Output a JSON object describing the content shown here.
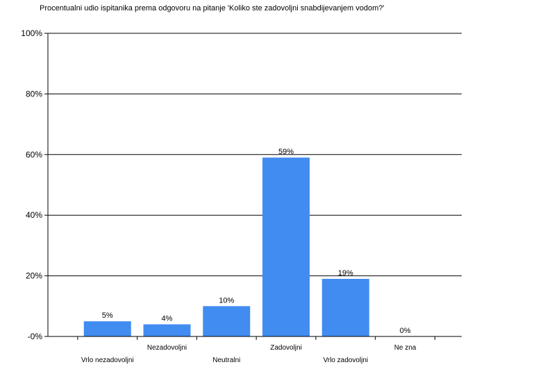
{
  "chart_data": {
    "type": "bar",
    "title": "Procentualni udio ispitanika prema odgovoru na pitanje 'Koliko ste zadovoljni snabdijevanjem vodom?'",
    "xlabel": "",
    "ylabel": "",
    "categories": [
      "Vrlo nezadovoljni",
      "Nezadovoljni",
      "Neutralni",
      "Zadovoljni",
      "Vrlo zadovoljni",
      "Ne zna"
    ],
    "values": [
      5,
      4,
      10,
      59,
      19,
      0
    ],
    "data_labels": [
      "5%",
      "4%",
      "10%",
      "59%",
      "19%",
      "0%"
    ],
    "ylim": [
      0,
      100
    ],
    "yticks": [
      0,
      20,
      40,
      60,
      80,
      100
    ],
    "ytick_labels": [
      "-0%",
      "20%",
      "40%",
      "60%",
      "80%",
      "100%"
    ],
    "grid": true,
    "legend": "none",
    "bar_color": "#418CF0"
  }
}
